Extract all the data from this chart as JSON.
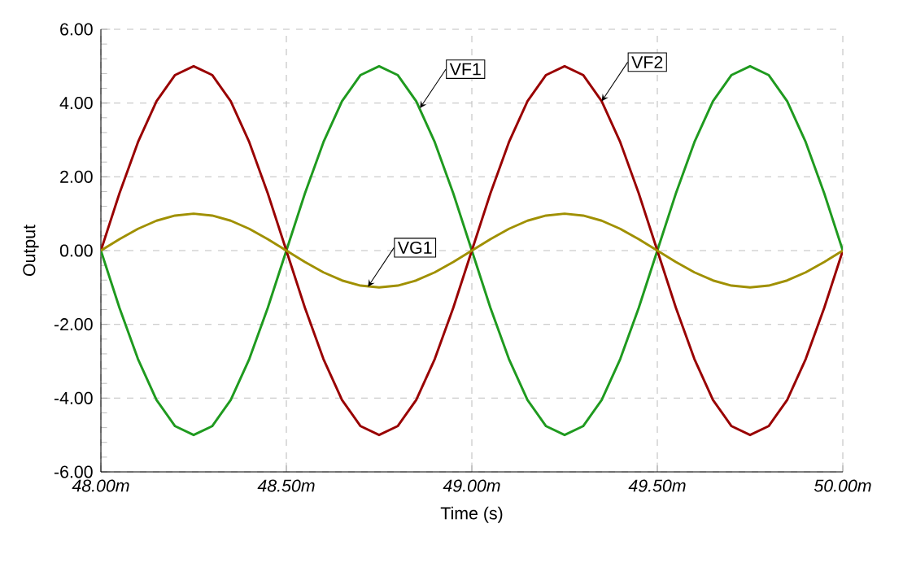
{
  "chart_data": {
    "type": "line",
    "xlabel": "Time (s)",
    "ylabel": "Output",
    "grid": true,
    "x": [
      48,
      48.05,
      48.1,
      48.15,
      48.2,
      48.25,
      48.3,
      48.35,
      48.4,
      48.45,
      48.5,
      48.55,
      48.6,
      48.65,
      48.7,
      48.75,
      48.8,
      48.85,
      48.9,
      48.95,
      49,
      49.05,
      49.1,
      49.15,
      49.2,
      49.25,
      49.3,
      49.35,
      49.4,
      49.45,
      49.5,
      49.55,
      49.6,
      49.65,
      49.7,
      49.75,
      49.8,
      49.85,
      49.9,
      49.95,
      50
    ],
    "series": [
      {
        "color": "#1f9a1f",
        "values": [
          0,
          -1.55,
          -2.94,
          -4.05,
          -4.76,
          -5,
          -4.76,
          -4.05,
          -2.94,
          -1.55,
          0,
          1.55,
          2.94,
          4.05,
          4.76,
          5,
          4.76,
          4.05,
          2.94,
          1.55,
          0,
          -1.55,
          -2.94,
          -4.05,
          -4.76,
          -5,
          -4.76,
          -4.05,
          -2.94,
          -1.55,
          0,
          1.55,
          2.94,
          4.05,
          4.76,
          5,
          4.76,
          4.05,
          2.94,
          1.55,
          0
        ]
      },
      {
        "color": "#990000",
        "values": [
          0,
          1.55,
          2.94,
          4.05,
          4.76,
          5,
          4.76,
          4.05,
          2.94,
          1.55,
          0,
          -1.55,
          -2.94,
          -4.05,
          -4.76,
          -5,
          -4.76,
          -4.05,
          -2.94,
          -1.55,
          0,
          1.55,
          2.94,
          4.05,
          4.76,
          5,
          4.76,
          4.05,
          2.94,
          1.55,
          0,
          -1.55,
          -2.94,
          -4.05,
          -4.76,
          -5,
          -4.76,
          -4.05,
          -2.94,
          -1.55,
          0
        ]
      },
      {
        "color": "#a09000",
        "values": [
          0,
          0.31,
          0.59,
          0.81,
          0.95,
          1,
          0.95,
          0.81,
          0.59,
          0.31,
          0,
          -0.31,
          -0.59,
          -0.81,
          -0.95,
          -1,
          -0.95,
          -0.81,
          -0.59,
          -0.31,
          0,
          0.31,
          0.59,
          0.81,
          0.95,
          1,
          0.95,
          0.81,
          0.59,
          0.31,
          0,
          -0.31,
          -0.59,
          -0.81,
          -0.95,
          -1,
          -0.95,
          -0.81,
          -0.59,
          -0.31,
          0
        ]
      }
    ],
    "xlim": [
      48,
      50
    ],
    "xticks": [
      {
        "value": 48,
        "label": "48.00m"
      },
      {
        "value": 48.5,
        "label": "48.50m"
      },
      {
        "value": 49,
        "label": "49.00m"
      },
      {
        "value": 49.5,
        "label": "49.50m"
      },
      {
        "value": 50,
        "label": "50.00m"
      }
    ],
    "ylim": [
      -6,
      6
    ],
    "yticks": [
      {
        "value": -6,
        "label": "-6.00"
      },
      {
        "value": -4,
        "label": "-4.00"
      },
      {
        "value": -2,
        "label": "-2.00"
      },
      {
        "value": 0,
        "label": "0.00"
      },
      {
        "value": 2,
        "label": "2.00"
      },
      {
        "value": 4,
        "label": "4.00"
      },
      {
        "value": 6,
        "label": "6.00"
      }
    ],
    "annotations": [
      {
        "text": "VF1",
        "x": 48.86,
        "y": 3.86
      },
      {
        "text": "VF2",
        "x": 49.35,
        "y": 4.05
      },
      {
        "text": "VG1",
        "x": 48.72,
        "y": -0.98
      }
    ]
  }
}
